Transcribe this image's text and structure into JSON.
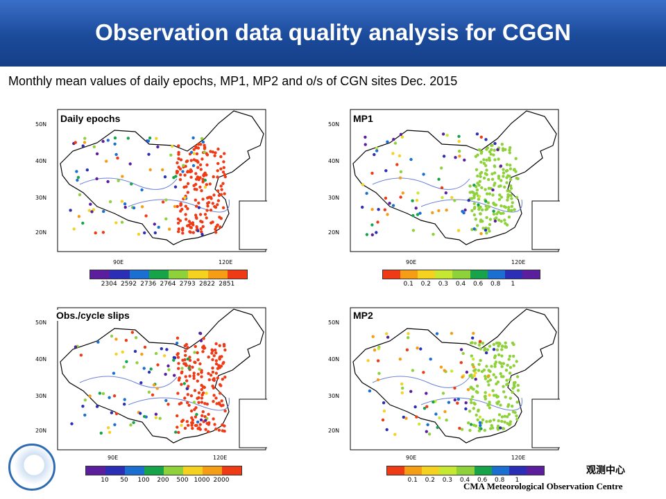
{
  "title": "Observation data quality analysis for CGGN",
  "subtitle": "Monthly mean values of daily epochs, MP1, MP2 and o/s of CGN sites Dec. 2015",
  "footer": {
    "chinese_text": "观测中心",
    "english_text": "CMA Meteorological Observation Centre"
  },
  "axis": {
    "lat_labels": [
      "50N",
      "40N",
      "30N",
      "20N"
    ],
    "lon_labels": [
      "90E",
      "120E"
    ]
  },
  "panels": [
    {
      "label": "Daily epochs",
      "colorbar_colors": [
        "#5b1f9e",
        "#2a2fb5",
        "#1a6fd1",
        "#16a34a",
        "#8fd13a",
        "#f4d21f",
        "#f59d14",
        "#ef3a16"
      ],
      "colorbar_ticks": [
        "2304",
        "2592",
        "2736",
        "2764",
        "2793",
        "2822",
        "2851"
      ],
      "dominant_color": "#ef3a16"
    },
    {
      "label": "MP1",
      "colorbar_colors": [
        "#ef3a16",
        "#f59d14",
        "#f4d21f",
        "#c7e832",
        "#8fd13a",
        "#16a34a",
        "#1a6fd1",
        "#2a2fb5",
        "#5b1f9e"
      ],
      "colorbar_ticks": [
        "0.1",
        "0.2",
        "0.3",
        "0.4",
        "0.6",
        "0.8",
        "1"
      ],
      "dominant_color": "#8fd13a"
    },
    {
      "label": "Obs./cycle slips",
      "colorbar_colors": [
        "#5b1f9e",
        "#2a2fb5",
        "#1a6fd1",
        "#16a34a",
        "#8fd13a",
        "#f4d21f",
        "#f59d14",
        "#ef3a16"
      ],
      "colorbar_ticks": [
        "10",
        "50",
        "100",
        "200",
        "500",
        "1000",
        "2000"
      ],
      "dominant_color": "#ef3a16"
    },
    {
      "label": "MP2",
      "colorbar_colors": [
        "#ef3a16",
        "#f59d14",
        "#f4d21f",
        "#c7e832",
        "#8fd13a",
        "#16a34a",
        "#1a6fd1",
        "#2a2fb5",
        "#5b1f9e"
      ],
      "colorbar_ticks": [
        "0.1",
        "0.2",
        "0.3",
        "0.4",
        "0.6",
        "0.8",
        "1"
      ],
      "dominant_color": "#8fd13a"
    }
  ]
}
